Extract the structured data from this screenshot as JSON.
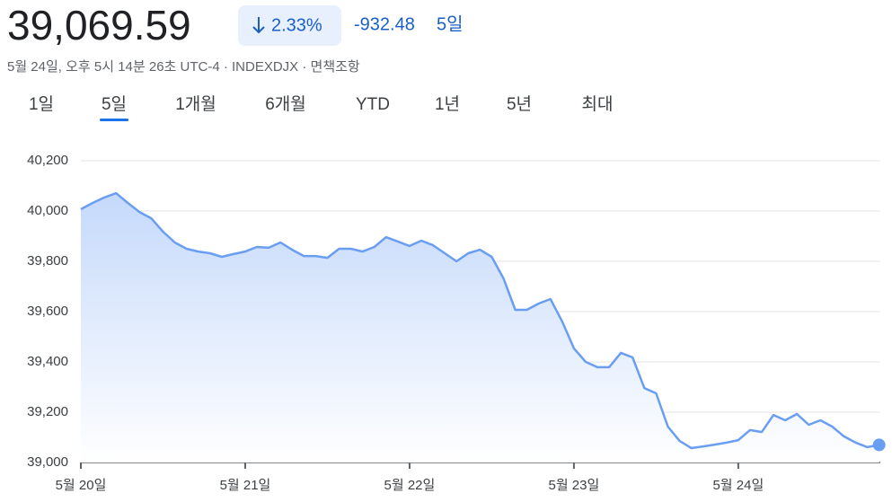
{
  "header": {
    "price": "39,069.59",
    "change_percent": "2.33%",
    "change": "-932.48",
    "period": "5일",
    "subtitle": "5월 24일, 오후 5시 14분 26초 UTC-4 · INDEXDJX · 면책조항"
  },
  "tabs": {
    "items": [
      "1일",
      "5일",
      "1개월",
      "6개월",
      "YTD",
      "1년",
      "5년",
      "최대"
    ],
    "selected": 1
  },
  "chart_data": {
    "type": "line",
    "color": "#6a9ef2",
    "grid": true,
    "x": [
      0,
      1,
      2,
      3,
      4,
      5,
      6,
      7,
      8,
      9,
      10,
      11,
      12,
      13,
      14,
      15,
      16,
      17,
      18,
      19,
      20,
      21,
      22,
      23,
      24,
      25,
      26,
      27,
      28,
      29,
      30,
      31,
      32,
      33,
      34,
      35,
      36,
      37,
      38,
      39,
      40,
      41,
      42,
      43,
      44,
      45,
      46,
      47,
      48,
      49,
      50,
      51,
      52,
      53,
      54,
      55,
      56,
      57,
      58,
      59,
      60,
      61,
      62,
      63,
      64,
      65,
      66,
      67,
      68
    ],
    "values": [
      40007,
      40032,
      40054,
      40071,
      40032,
      39996,
      39971,
      39918,
      39875,
      39850,
      39839,
      39832,
      39818,
      39829,
      39839,
      39857,
      39854,
      39875,
      39846,
      39821,
      39821,
      39814,
      39850,
      39850,
      39839,
      39857,
      39896,
      39879,
      39861,
      39882,
      39864,
      39832,
      39800,
      39832,
      39846,
      39818,
      39732,
      39607,
      39607,
      39632,
      39650,
      39561,
      39454,
      39400,
      39379,
      39379,
      39436,
      39418,
      39296,
      39275,
      39143,
      39086,
      39057,
      39064,
      39071,
      39079,
      39089,
      39129,
      39121,
      39189,
      39168,
      39193,
      39150,
      39168,
      39143,
      39104,
      39079,
      39061,
      39070
    ],
    "xlim": [
      0,
      68.1
    ],
    "xticks": [
      {
        "value": 0,
        "label": "5월 20일"
      },
      {
        "value": 14,
        "label": "5월 21일"
      },
      {
        "value": 28,
        "label": "5월 22일"
      },
      {
        "value": 42,
        "label": "5월 23일"
      },
      {
        "value": 56,
        "label": "5월 24일"
      }
    ],
    "ylim": [
      39000,
      40200
    ],
    "yticks": [
      {
        "value": 39000,
        "label": "39,000"
      },
      {
        "value": 39200,
        "label": "39,200"
      },
      {
        "value": 39400,
        "label": "39,400"
      },
      {
        "value": 39600,
        "label": "39,600"
      },
      {
        "value": 39800,
        "label": "39,800"
      },
      {
        "value": 40000,
        "label": "40,000"
      },
      {
        "value": 40200,
        "label": "40,200"
      }
    ]
  }
}
